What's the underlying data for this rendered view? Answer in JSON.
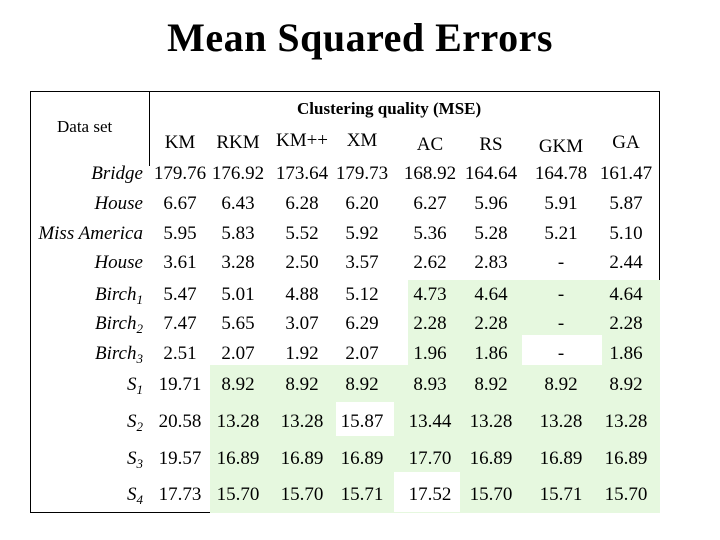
{
  "title": "Mean Squared Errors",
  "header": {
    "dataset_label": "Data set",
    "quality_label": "Clustering quality (MSE)"
  },
  "methods": [
    "KM",
    "RKM",
    "KM++",
    "XM",
    "AC",
    "RS",
    "GKM",
    "GA"
  ],
  "rows": [
    {
      "name": "Bridge",
      "sub": "",
      "values": [
        "179.76",
        "176.92",
        "173.64",
        "179.73",
        "168.92",
        "164.64",
        "164.78",
        "161.47"
      ]
    },
    {
      "name": "House",
      "sub": "",
      "values": [
        "6.67",
        "6.43",
        "6.28",
        "6.20",
        "6.27",
        "5.96",
        "5.91",
        "5.87"
      ]
    },
    {
      "name": "Miss America",
      "sub": "",
      "values": [
        "5.95",
        "5.83",
        "5.52",
        "5.92",
        "5.36",
        "5.28",
        "5.21",
        "5.10"
      ]
    },
    {
      "name": "House",
      "sub": "",
      "values": [
        "3.61",
        "3.28",
        "2.50",
        "3.57",
        "2.62",
        "2.83",
        "-",
        "2.44"
      ]
    },
    {
      "name": "Birch",
      "sub": "1",
      "values": [
        "5.47",
        "5.01",
        "4.88",
        "5.12",
        "4.73",
        "4.64",
        "-",
        "4.64"
      ]
    },
    {
      "name": "Birch",
      "sub": "2",
      "values": [
        "7.47",
        "5.65",
        "3.07",
        "6.29",
        "2.28",
        "2.28",
        "-",
        "2.28"
      ]
    },
    {
      "name": "Birch",
      "sub": "3",
      "values": [
        "2.51",
        "2.07",
        "1.92",
        "2.07",
        "1.96",
        "1.86",
        "-",
        "1.86"
      ]
    },
    {
      "name": "S",
      "sub": "1",
      "values": [
        "19.71",
        "8.92",
        "8.92",
        "8.92",
        "8.93",
        "8.92",
        "8.92",
        "8.92"
      ]
    },
    {
      "name": "S",
      "sub": "2",
      "values": [
        "20.58",
        "13.28",
        "13.28",
        "15.87",
        "13.44",
        "13.28",
        "13.28",
        "13.28"
      ]
    },
    {
      "name": "S",
      "sub": "3",
      "values": [
        "19.57",
        "16.89",
        "16.89",
        "16.89",
        "17.70",
        "16.89",
        "16.89",
        "16.89"
      ]
    },
    {
      "name": "S",
      "sub": "4",
      "values": [
        "17.73",
        "15.70",
        "15.70",
        "15.71",
        "17.52",
        "15.70",
        "15.71",
        "15.70"
      ]
    }
  ],
  "colors": {
    "highlight_background": "#e6f8df",
    "text": "#000000",
    "border": "#000000"
  }
}
